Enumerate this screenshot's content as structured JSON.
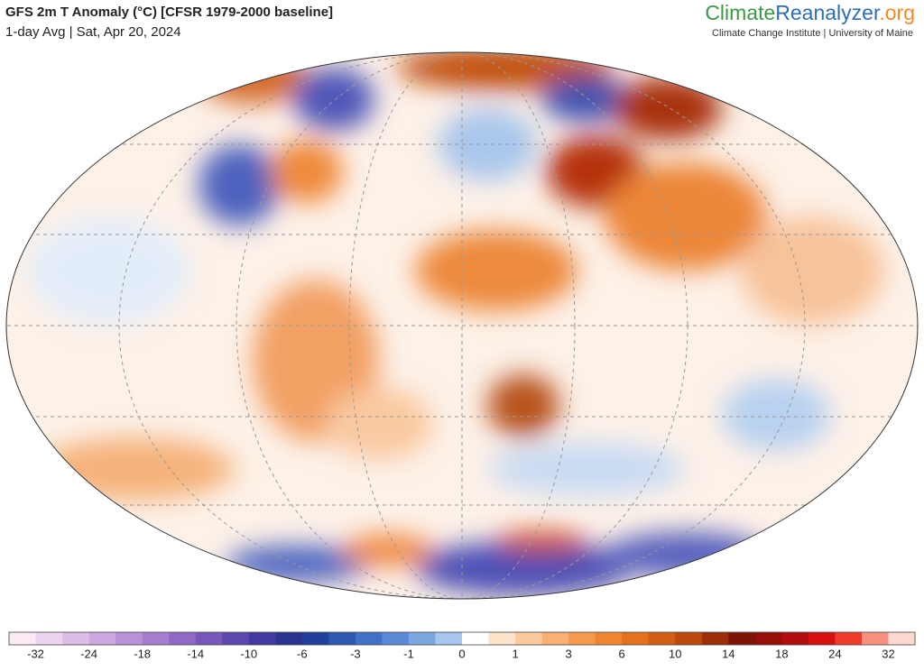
{
  "header": {
    "title": "GFS 2m T Anomaly (°C) [CFSR 1979-2000 baseline]",
    "subtitle": "1-day Avg | Sat, Apr 20, 2024",
    "brand": [
      "Climate",
      "Reanalyzer",
      ".org"
    ],
    "brand_tagline": "Climate Change Institute | University of Maine"
  },
  "colorbar": {
    "colors": [
      "#fbe9f4",
      "#ecd3ef",
      "#dcbde8",
      "#cba8e1",
      "#b992d9",
      "#a57ed0",
      "#8f69c5",
      "#7757b9",
      "#5e47ac",
      "#423a9f",
      "#2b3391",
      "#213f9c",
      "#2c58b2",
      "#3f71c6",
      "#5b8bd6",
      "#7ca6e2",
      "#a6c6ee",
      "#ffffff",
      "#fde3c8",
      "#fcc99d",
      "#f9b072",
      "#f59a4d",
      "#ef8530",
      "#e6701f",
      "#d45d14",
      "#bd4a0d",
      "#9c2f08",
      "#7d1406",
      "#951008",
      "#b30c0c",
      "#d80f0f",
      "#ef3b2a",
      "#f7907e",
      "#fbd8d0"
    ],
    "ticks": [
      -32,
      -24,
      -18,
      -14,
      -10,
      -6,
      -3,
      -1,
      0,
      1,
      3,
      6,
      10,
      14,
      18,
      24,
      32
    ]
  }
}
